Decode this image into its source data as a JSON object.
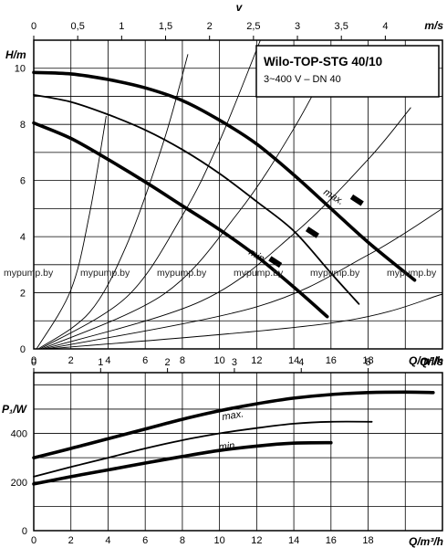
{
  "chart_data": [
    {
      "type": "line",
      "title": "Wilo-TOP-STG 40/10",
      "subtitle": "3~400 V – DN 40",
      "xlabel": "Q/m³/h",
      "ylabel": "H/m",
      "top_axis_label": "v",
      "top_axis_unit": "m/s",
      "xlim": [
        0,
        22
      ],
      "ylim": [
        0,
        11
      ],
      "x_ticks": [
        "0",
        "2",
        "4",
        "6",
        "8",
        "10",
        "12",
        "14",
        "16",
        "18"
      ],
      "y_ticks": [
        "0",
        "2",
        "4",
        "6",
        "8",
        "10"
      ],
      "top_ticks": [
        "0",
        "0,5",
        "1",
        "1,5",
        "2",
        "2,5",
        "3",
        "3,5",
        "4"
      ],
      "top_tick_values": [
        0,
        0.5,
        1,
        1.5,
        2,
        2.5,
        3,
        3.5,
        4
      ],
      "top_axis_max": 4.65,
      "grid": true,
      "series": [
        {
          "name": "max.",
          "style": "thick",
          "x": [
            0,
            2,
            4,
            6,
            8,
            10,
            12,
            14,
            16,
            18,
            20.5
          ],
          "y": [
            9.85,
            9.8,
            9.6,
            9.3,
            8.85,
            8.15,
            7.3,
            6.2,
            5.0,
            3.8,
            2.45
          ]
        },
        {
          "style": "medium",
          "x": [
            0,
            2,
            4,
            6,
            8,
            10,
            12,
            14,
            16,
            17.5
          ],
          "y": [
            9.05,
            8.8,
            8.35,
            7.8,
            7.1,
            6.25,
            5.25,
            4.2,
            2.7,
            1.6
          ]
        },
        {
          "name": "min.",
          "style": "thick",
          "x": [
            0,
            2,
            4,
            6,
            8,
            10,
            12,
            14,
            15.8
          ],
          "y": [
            8.05,
            7.5,
            6.75,
            5.95,
            5.1,
            4.25,
            3.3,
            2.2,
            1.15
          ]
        },
        {
          "style": "system",
          "x": [
            0.15,
            2,
            3,
            3.9
          ],
          "y": [
            0,
            2.1,
            4.8,
            8.3
          ]
        },
        {
          "style": "system",
          "x": [
            0.25,
            3,
            5,
            7,
            8.3
          ],
          "y": [
            0,
            1.3,
            3.7,
            7.4,
            10.5
          ]
        },
        {
          "style": "system",
          "x": [
            0.35,
            5,
            8,
            10,
            12.2
          ],
          "y": [
            0,
            1.85,
            4.75,
            7.4,
            11.0
          ]
        },
        {
          "style": "system",
          "x": [
            0.45,
            7,
            11,
            14,
            16.4
          ],
          "y": [
            0,
            1.95,
            4.85,
            7.85,
            10.8
          ]
        },
        {
          "style": "system",
          "x": [
            0.55,
            9,
            14,
            18,
            20.3
          ],
          "y": [
            0,
            1.7,
            4.1,
            6.75,
            8.6
          ]
        },
        {
          "style": "system",
          "x": [
            0.7,
            12,
            18,
            22
          ],
          "y": [
            0,
            1.5,
            3.35,
            5.0
          ]
        },
        {
          "style": "system",
          "x": [
            0.8,
            16,
            22
          ],
          "y": [
            0,
            0.92,
            1.95
          ]
        }
      ],
      "markers": [
        {
          "x": 17.4,
          "y": 5.3
        },
        {
          "x": 15.0,
          "y": 4.15
        },
        {
          "x": 13.0,
          "y": 3.1
        }
      ],
      "watermark": [
        "mypump.by",
        "mypump.by",
        "mypump.by",
        "mypump.by",
        "mypump.by",
        "mypump.by"
      ]
    },
    {
      "type": "line",
      "xlabel": "Q/m³/h",
      "ylabel": "P₁/W",
      "top_axis_label": "Q/l/s",
      "xlim": [
        0,
        22
      ],
      "ylim": [
        0,
        650
      ],
      "x_ticks": [
        "0",
        "2",
        "4",
        "6",
        "8",
        "10",
        "12",
        "14",
        "16",
        "18"
      ],
      "y_ticks": [
        "0",
        "200",
        "400"
      ],
      "top_ticks": [
        "0",
        "1",
        "2",
        "3",
        "4",
        "5"
      ],
      "grid": true,
      "series": [
        {
          "name": "max.",
          "style": "thick",
          "x": [
            0,
            2,
            4,
            6,
            8,
            10,
            12,
            14,
            16,
            18,
            20,
            21.5
          ],
          "y": [
            300,
            338,
            378,
            418,
            458,
            493,
            522,
            545,
            560,
            568,
            570,
            568
          ]
        },
        {
          "style": "medium",
          "x": [
            0,
            2,
            4,
            6,
            8,
            10,
            12,
            14,
            16,
            18.2
          ],
          "y": [
            222,
            262,
            300,
            338,
            372,
            400,
            422,
            440,
            448,
            448
          ]
        },
        {
          "name": "min.",
          "style": "thick",
          "x": [
            0,
            2,
            4,
            6,
            8,
            10,
            12,
            14,
            16
          ],
          "y": [
            192,
            222,
            250,
            278,
            305,
            330,
            348,
            360,
            362
          ]
        }
      ]
    }
  ]
}
